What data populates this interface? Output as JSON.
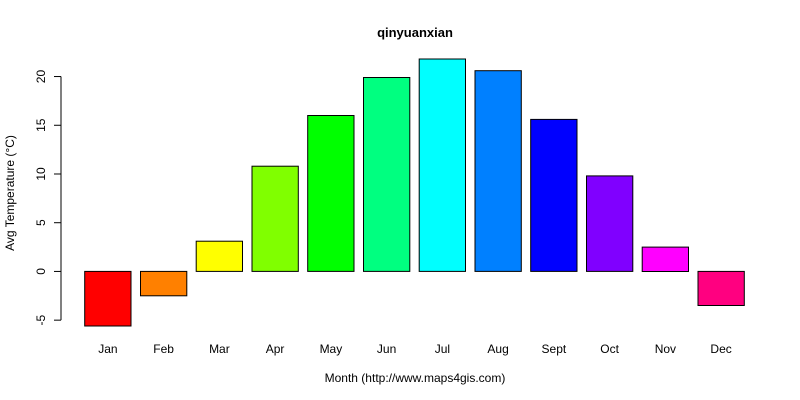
{
  "chart_data": {
    "type": "bar",
    "title": "qinyuanxian",
    "xlabel": "Month (http://www.maps4gis.com)",
    "ylabel": "Avg Temperature (°C)",
    "categories": [
      "Jan",
      "Feb",
      "Mar",
      "Apr",
      "May",
      "Jun",
      "Jul",
      "Aug",
      "Sept",
      "Oct",
      "Nov",
      "Dec"
    ],
    "values": [
      -5.6,
      -2.5,
      3.1,
      10.8,
      16.0,
      19.9,
      21.8,
      20.6,
      15.6,
      9.8,
      2.5,
      -3.5
    ],
    "colors": [
      "#FF0000",
      "#FF8000",
      "#FFFF00",
      "#80FF00",
      "#00FF00",
      "#00FF80",
      "#00FFFF",
      "#0080FF",
      "#0000FF",
      "#8000FF",
      "#FF00FF",
      "#FF0080"
    ],
    "yticks": [
      -5,
      0,
      5,
      10,
      15,
      20
    ],
    "ylim": [
      -5.6,
      21.8
    ],
    "grid": false,
    "legend": "none"
  }
}
